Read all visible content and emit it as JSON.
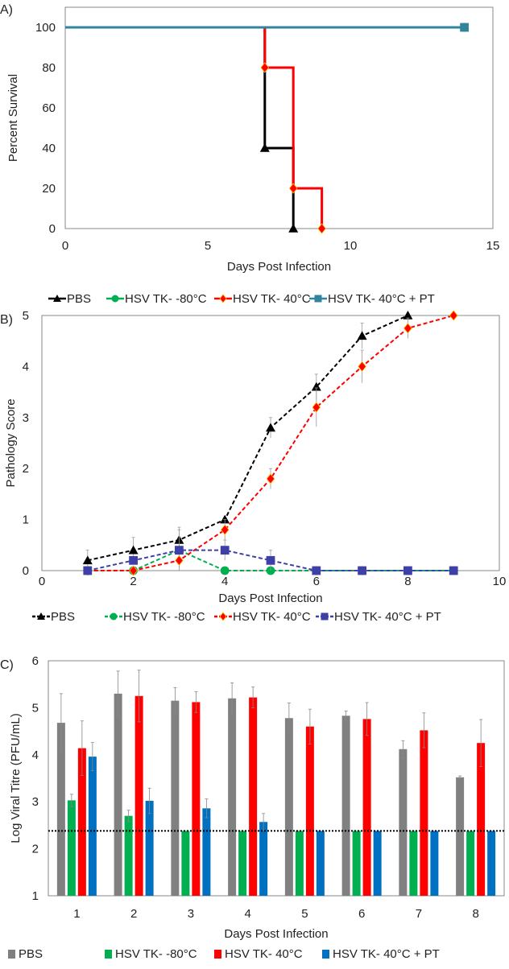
{
  "chart_data": [
    {
      "panel_label": "A)",
      "type": "line",
      "step": true,
      "xlabel": "Days Post Infection",
      "ylabel": "Percent Survival",
      "xlim": [
        0,
        15
      ],
      "ylim": [
        0,
        100
      ],
      "xticks": [
        0,
        5,
        10,
        15
      ],
      "yticks": [
        0,
        20,
        40,
        60,
        80,
        100
      ],
      "grid": false,
      "legend": "bottom",
      "series": [
        {
          "name": "PBS",
          "color": "#000000",
          "marker": "triangle",
          "x": [
            0,
            7,
            8
          ],
          "y": [
            100,
            40,
            0
          ],
          "marked": [
            [
              7,
              40
            ],
            [
              8,
              0
            ]
          ]
        },
        {
          "name": "HSV TK- -80°C",
          "color": "#00b050",
          "marker": "circle",
          "x": [
            0,
            14
          ],
          "y": [
            100,
            100
          ],
          "marked": [
            [
              14,
              100
            ]
          ]
        },
        {
          "name": "HSV TK- 40°C",
          "color": "#ff0000",
          "marker": "diamond",
          "x": [
            0,
            7,
            8,
            9
          ],
          "y": [
            100,
            80,
            20,
            0
          ],
          "marked": [
            [
              7,
              80
            ],
            [
              8,
              20
            ],
            [
              9,
              0
            ]
          ]
        },
        {
          "name": "HSV TK- 40°C + PT",
          "color": "#31849b",
          "marker": "square",
          "x": [
            0,
            14
          ],
          "y": [
            100,
            100
          ],
          "marked": [
            [
              14,
              100
            ]
          ]
        }
      ]
    },
    {
      "panel_label": "B)",
      "type": "line",
      "dashed": true,
      "xlabel": "Days Post Infection",
      "ylabel": "Pathology Score",
      "xlim": [
        0,
        10
      ],
      "ylim": [
        0,
        5
      ],
      "xticks": [
        0,
        2,
        4,
        6,
        8,
        10
      ],
      "yticks": [
        0,
        1,
        2,
        3,
        4,
        5
      ],
      "grid": false,
      "legend": "bottom",
      "series": [
        {
          "name": "PBS",
          "color": "#000000",
          "marker": "triangle",
          "x": [
            1,
            2,
            3,
            4,
            5,
            6,
            7,
            8
          ],
          "y": [
            0.2,
            0.4,
            0.6,
            1.0,
            2.8,
            3.6,
            4.6,
            5.0
          ],
          "err": [
            0.2,
            0.25,
            0.25,
            0,
            0.2,
            0.25,
            0.25,
            0
          ]
        },
        {
          "name": "HSV TK- -80°C",
          "color": "#00b050",
          "marker": "circle",
          "x": [
            1,
            2,
            3,
            4,
            5,
            6,
            7,
            8,
            9
          ],
          "y": [
            0,
            0,
            0.4,
            0,
            0,
            0,
            0,
            0,
            0
          ],
          "err": [
            0,
            0,
            0.4,
            0,
            0,
            0,
            0,
            0,
            0
          ]
        },
        {
          "name": "HSV TK- 40°C",
          "color": "#ff0000",
          "marker": "diamond",
          "x": [
            1,
            2,
            3,
            4,
            5,
            6,
            7,
            8,
            9
          ],
          "y": [
            0,
            0,
            0.2,
            0.8,
            1.8,
            3.2,
            4.0,
            4.75,
            5.0
          ],
          "err": [
            0,
            0,
            0.2,
            0.2,
            0.2,
            0.38,
            0.32,
            0.2,
            0
          ]
        },
        {
          "name": "HSV TK- 40°C + PT",
          "color": "#3f3fa8",
          "marker": "square",
          "x": [
            1,
            2,
            3,
            4,
            5,
            6,
            7,
            8,
            9
          ],
          "y": [
            0,
            0.2,
            0.4,
            0.4,
            0.2,
            0,
            0,
            0,
            0
          ],
          "err": [
            0,
            0,
            0,
            0.2,
            0.2,
            0,
            0,
            0,
            0
          ]
        }
      ]
    },
    {
      "panel_label": "C)",
      "type": "bar",
      "xlabel": "Days Post Infection",
      "ylabel": "Log Viral Titre (PFU/mL)",
      "categories": [
        "1",
        "2",
        "3",
        "4",
        "5",
        "6",
        "7",
        "8"
      ],
      "ylim": [
        1,
        6
      ],
      "yticks": [
        1,
        2,
        3,
        4,
        5,
        6
      ],
      "grid": false,
      "legend": "bottom",
      "detection_limit": 2.38,
      "series": [
        {
          "name": "PBS",
          "color": "#808080",
          "values": [
            4.68,
            5.3,
            5.15,
            5.2,
            4.78,
            4.83,
            4.12,
            3.52
          ],
          "err": [
            0.62,
            0.48,
            0.28,
            0.33,
            0.32,
            0.1,
            0.18,
            0.03
          ]
        },
        {
          "name": "HSV TK- -80°C",
          "color": "#00b050",
          "values": [
            3.03,
            2.7,
            2.38,
            2.38,
            2.38,
            2.38,
            2.38,
            2.38
          ],
          "err": [
            0.13,
            0.12,
            0,
            0,
            0,
            0,
            0,
            0
          ]
        },
        {
          "name": "HSV TK- 40°C",
          "color": "#ff0000",
          "values": [
            4.14,
            5.25,
            5.12,
            5.22,
            4.6,
            4.76,
            4.52,
            4.25
          ],
          "err": [
            0.58,
            0.55,
            0.22,
            0.22,
            0.37,
            0.35,
            0.37,
            0.5
          ]
        },
        {
          "name": "HSV TK- 40°C + PT",
          "color": "#0070c0",
          "values": [
            3.96,
            3.02,
            2.86,
            2.57,
            2.38,
            2.38,
            2.38,
            2.38
          ],
          "err": [
            0.3,
            0.27,
            0.2,
            0.18,
            0,
            0,
            0,
            0
          ]
        }
      ]
    }
  ]
}
